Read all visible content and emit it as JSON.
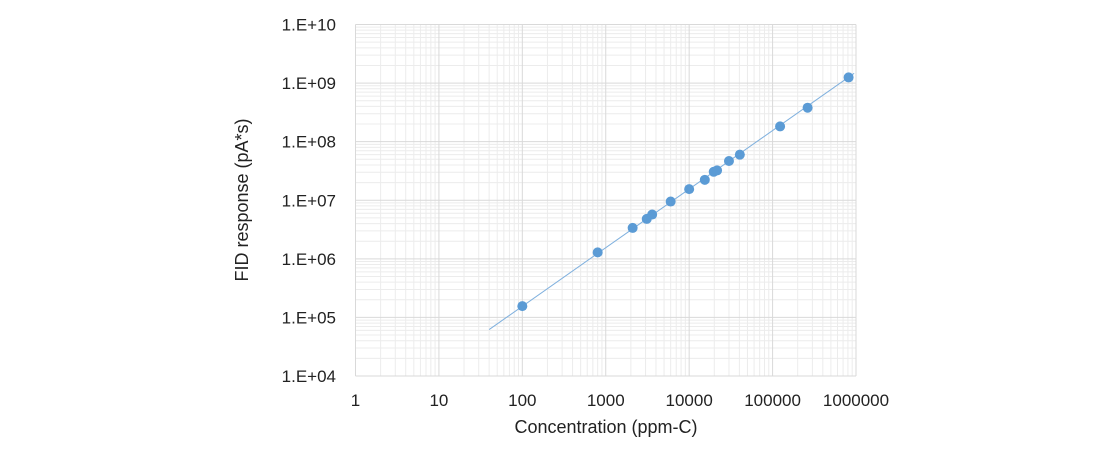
{
  "chart_data": {
    "type": "scatter",
    "title": "",
    "xlabel": "Concentration (ppm-C)",
    "ylabel": "FID response (pA*s)",
    "xscale": "log",
    "yscale": "log",
    "xlim": [
      1,
      1000000
    ],
    "ylim": [
      10000,
      10000000000
    ],
    "grid": true,
    "minor_grid": true,
    "legend": "none",
    "x_tick_labels": [
      "1",
      "10",
      "100",
      "1000",
      "10000",
      "100000",
      "1000000"
    ],
    "y_tick_labels": [
      "1.E+04",
      "1.E+05",
      "1.E+06",
      "1.E+07",
      "1.E+08",
      "1.E+09",
      "1.E+10"
    ],
    "colors": {
      "points": "#5b9bd5",
      "trendline": "#7fb0de",
      "grid": "#d9d9d9"
    },
    "series": [
      {
        "x": [
          100,
          800,
          2100,
          3100,
          3600,
          6000,
          10000,
          15400,
          19700,
          21600,
          30000,
          40500,
          123000,
          263000,
          815000
        ],
        "y": [
          156000,
          1290000,
          3370000,
          4800000,
          5700000,
          9500000,
          15500000,
          22300000,
          30600000,
          32300000,
          46800000,
          60000000,
          182000000,
          380000000,
          1250000000
        ]
      }
    ],
    "trendline": {
      "x": [
        40,
        950000
      ],
      "y": [
        62000,
        1470000000
      ]
    }
  }
}
